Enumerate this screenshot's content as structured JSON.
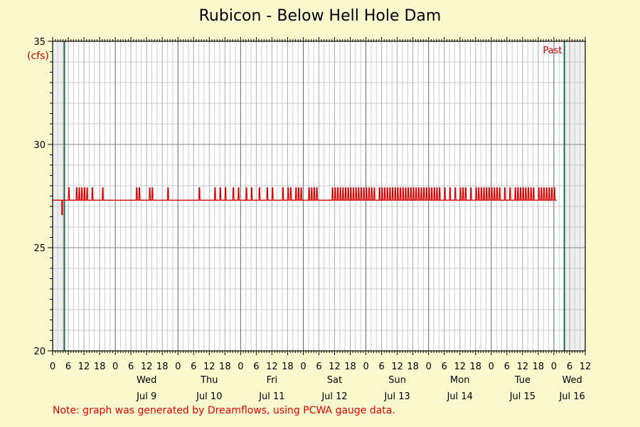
{
  "chart_data": {
    "type": "line",
    "title": "Rubicon - Below Hell Hole Dam",
    "ylabel": "(cfs)",
    "ylim": [
      20,
      35
    ],
    "yticks": [
      20,
      25,
      30,
      35
    ],
    "xlim": [
      "2025-07-08T00:00",
      "2025-07-16T12:00"
    ],
    "x_hour_labels": [
      "0",
      "6",
      "12",
      "18"
    ],
    "days": [
      {
        "weekday": "",
        "date": ""
      },
      {
        "weekday": "Wed",
        "date": "Jul 9"
      },
      {
        "weekday": "Thu",
        "date": "Jul 10"
      },
      {
        "weekday": "Fri",
        "date": "Jul 11"
      },
      {
        "weekday": "Sat",
        "date": "Jul 12"
      },
      {
        "weekday": "Sun",
        "date": "Jul 13"
      },
      {
        "weekday": "Mon",
        "date": "Jul 14"
      },
      {
        "weekday": "Tue",
        "date": "Jul 15"
      },
      {
        "weekday": "Wed",
        "date": "Jul 16"
      }
    ],
    "marker_label": "Past",
    "shaded_before": "2025-07-08T04:30",
    "shaded_after": "2025-07-16T04:00",
    "grid": true,
    "series": [
      {
        "color": "#dd0000",
        "base_value": 27.3,
        "peak_value": 27.9,
        "dip": {
          "start": "2025-07-08T03:30",
          "end": "2025-07-08T03:45",
          "value": 26.6
        },
        "series_end": "2025-07-16T01:00",
        "pulse_start_times": [
          "2025-07-08T06:00",
          "2025-07-08T09:00",
          "2025-07-08T10:00",
          "2025-07-08T11:00",
          "2025-07-08T12:00",
          "2025-07-08T13:00",
          "2025-07-08T15:00",
          "2025-07-08T19:00",
          "2025-07-09T08:00",
          "2025-07-09T09:00",
          "2025-07-09T13:00",
          "2025-07-09T14:00",
          "2025-07-09T20:00",
          "2025-07-10T08:00",
          "2025-07-10T14:00",
          "2025-07-10T16:00",
          "2025-07-10T18:00",
          "2025-07-10T21:00",
          "2025-07-10T23:00",
          "2025-07-11T02:00",
          "2025-07-11T04:00",
          "2025-07-11T07:00",
          "2025-07-11T10:00",
          "2025-07-11T12:00",
          "2025-07-11T16:00",
          "2025-07-11T18:00",
          "2025-07-11T19:00",
          "2025-07-11T21:00",
          "2025-07-11T22:00",
          "2025-07-11T23:00",
          "2025-07-12T02:00",
          "2025-07-12T03:00",
          "2025-07-12T04:00",
          "2025-07-12T05:00",
          "2025-07-12T11:00",
          "2025-07-12T12:00",
          "2025-07-12T13:00",
          "2025-07-12T14:00",
          "2025-07-12T15:00",
          "2025-07-12T16:00",
          "2025-07-12T17:00",
          "2025-07-12T18:00",
          "2025-07-12T19:00",
          "2025-07-12T20:00",
          "2025-07-12T21:00",
          "2025-07-12T22:00",
          "2025-07-12T23:00",
          "2025-07-13T00:00",
          "2025-07-13T01:00",
          "2025-07-13T02:00",
          "2025-07-13T03:00",
          "2025-07-13T05:00",
          "2025-07-13T06:00",
          "2025-07-13T07:00",
          "2025-07-13T08:00",
          "2025-07-13T09:00",
          "2025-07-13T10:00",
          "2025-07-13T11:00",
          "2025-07-13T12:00",
          "2025-07-13T13:00",
          "2025-07-13T14:00",
          "2025-07-13T15:00",
          "2025-07-13T16:00",
          "2025-07-13T17:00",
          "2025-07-13T18:00",
          "2025-07-13T19:00",
          "2025-07-13T20:00",
          "2025-07-13T21:00",
          "2025-07-13T22:00",
          "2025-07-13T23:00",
          "2025-07-14T00:00",
          "2025-07-14T01:00",
          "2025-07-14T02:00",
          "2025-07-14T03:00",
          "2025-07-14T04:00",
          "2025-07-14T06:00",
          "2025-07-14T08:00",
          "2025-07-14T10:00",
          "2025-07-14T12:00",
          "2025-07-14T13:00",
          "2025-07-14T14:00",
          "2025-07-14T16:00",
          "2025-07-14T18:00",
          "2025-07-14T19:00",
          "2025-07-14T20:00",
          "2025-07-14T21:00",
          "2025-07-14T22:00",
          "2025-07-14T23:00",
          "2025-07-15T00:00",
          "2025-07-15T01:00",
          "2025-07-15T02:00",
          "2025-07-15T03:00",
          "2025-07-15T05:00",
          "2025-07-15T07:00",
          "2025-07-15T09:00",
          "2025-07-15T10:00",
          "2025-07-15T11:00",
          "2025-07-15T12:00",
          "2025-07-15T13:00",
          "2025-07-15T14:00",
          "2025-07-15T15:00",
          "2025-07-15T16:00",
          "2025-07-15T18:00",
          "2025-07-15T19:00",
          "2025-07-15T20:00",
          "2025-07-15T21:00",
          "2025-07-15T22:00",
          "2025-07-15T23:00",
          "2025-07-16T00:00"
        ]
      }
    ]
  },
  "note": "Note: graph was generated by Dreamflows, using PCWA gauge data.",
  "colors": {
    "background": "#fbf8cd",
    "plot_background": "#ffffff",
    "shaded_region": "#eeeeee",
    "marker_line": "#1f6b4f",
    "grid_major": "#888888",
    "grid_minor": "#cccccc",
    "label_red": "#cc0000"
  }
}
